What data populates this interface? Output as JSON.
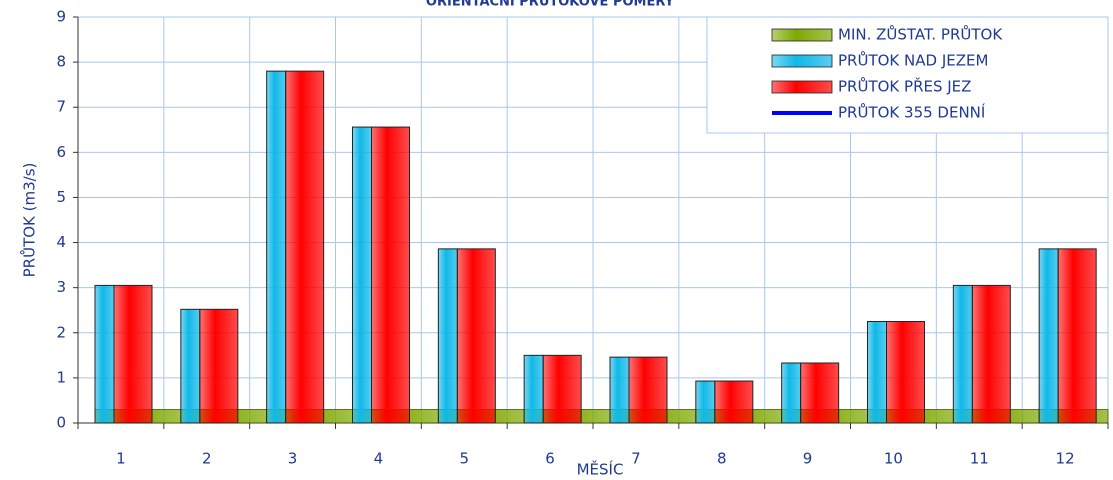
{
  "chart_data": {
    "type": "bar",
    "title": "ORIENTAČNÍ PRŮTOKOVÉ POMĚRY",
    "x_label": "MĚSÍC",
    "y_label": "PRŮTOK (m3/s)",
    "categories": [
      "1",
      "2",
      "3",
      "4",
      "5",
      "6",
      "7",
      "8",
      "9",
      "10",
      "11",
      "12"
    ],
    "series": [
      {
        "name": "MIN. ZŮSTAT. PRŮTOK",
        "color": "#7fa800",
        "kind": "band",
        "values": [
          0.3,
          0.3,
          0.3,
          0.3,
          0.3,
          0.3,
          0.3,
          0.3,
          0.3,
          0.3,
          0.3,
          0.3
        ]
      },
      {
        "name": "PRŮTOK NAD JEZEM",
        "color": "#10b8e8",
        "kind": "bar",
        "values": [
          3.05,
          2.52,
          7.8,
          6.56,
          3.86,
          1.5,
          1.46,
          0.93,
          1.33,
          2.25,
          3.05,
          3.86
        ]
      },
      {
        "name": "PRŮTOK PŘES JEZ",
        "color": "#ff0000",
        "kind": "bar",
        "values": [
          3.05,
          2.52,
          7.8,
          6.56,
          3.86,
          1.5,
          1.46,
          0.93,
          1.33,
          2.25,
          3.05,
          3.86
        ]
      },
      {
        "name": "PRŮTOK 355 DENNÍ",
        "color": "#0000ff",
        "kind": "line",
        "values": [
          null,
          null,
          null,
          null,
          null,
          null,
          null,
          null,
          null,
          null,
          null,
          null
        ]
      }
    ],
    "ylim": [
      0,
      9
    ],
    "yticks": [
      0,
      1,
      2,
      3,
      4,
      5,
      6,
      7,
      8,
      9
    ],
    "grid": true,
    "legend": "top-right"
  }
}
